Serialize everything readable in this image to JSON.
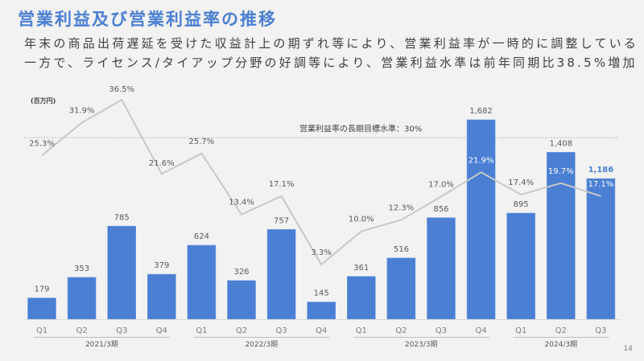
{
  "slide": {
    "title": "営業利益及び営業利益率の推移",
    "subtitle_line1": "年末の商品出荷遅延を受けた収益計上の期ずれ等により、営業利益率が一時的に調整している",
    "subtitle_line2": "一方で、ライセンス/タイアップ分野の好調等により、営業利益水準は前年同期比38.5%増加",
    "page_number": "14"
  },
  "colors": {
    "title": "#4a7fd4",
    "bar": "#4a7fd4",
    "line": "#c8c8c8",
    "highlight_label": "#4a7fd4",
    "text": "#595959"
  },
  "chart_data": {
    "type": "bar",
    "title": "営業利益及び営業利益率の推移",
    "unit_label": "(百万円)",
    "target_label": "営業利益率の長期目標水準：30%",
    "target_value": 30,
    "categories": [
      "Q1",
      "Q2",
      "Q3",
      "Q4",
      "Q1",
      "Q2",
      "Q3",
      "Q4",
      "Q1",
      "Q2",
      "Q3",
      "Q4",
      "Q1",
      "Q2",
      "Q3"
    ],
    "groups": [
      {
        "label": "2021/3期",
        "count": 4
      },
      {
        "label": "2022/3期",
        "count": 4
      },
      {
        "label": "2023/3期",
        "count": 4
      },
      {
        "label": "2024/3期",
        "count": 3
      }
    ],
    "series": [
      {
        "name": "営業利益",
        "type": "bar",
        "values": [
          179,
          353,
          785,
          379,
          624,
          326,
          757,
          145,
          361,
          516,
          856,
          1682,
          895,
          1408,
          1186
        ],
        "labels": [
          "179",
          "353",
          "785",
          "379",
          "624",
          "326",
          "757",
          "145",
          "361",
          "516",
          "856",
          "1,682",
          "895",
          "1,408",
          "1,186"
        ]
      },
      {
        "name": "営業利益率",
        "type": "line",
        "values": [
          25.3,
          31.9,
          36.5,
          21.6,
          25.7,
          13.4,
          17.1,
          3.3,
          10.0,
          12.3,
          17.0,
          21.9,
          17.4,
          19.7,
          17.1
        ],
        "labels": [
          "25.3%",
          "31.9%",
          "36.5%",
          "21.6%",
          "25.7%",
          "13.4%",
          "17.1%",
          "3.3%",
          "10.0%",
          "12.3%",
          "17.0%",
          "21.9%",
          "17.4%",
          "19.7%",
          "17.1%"
        ]
      }
    ],
    "ylim_bar": [
      0,
      1682
    ],
    "ylim_line": [
      0,
      40
    ]
  }
}
